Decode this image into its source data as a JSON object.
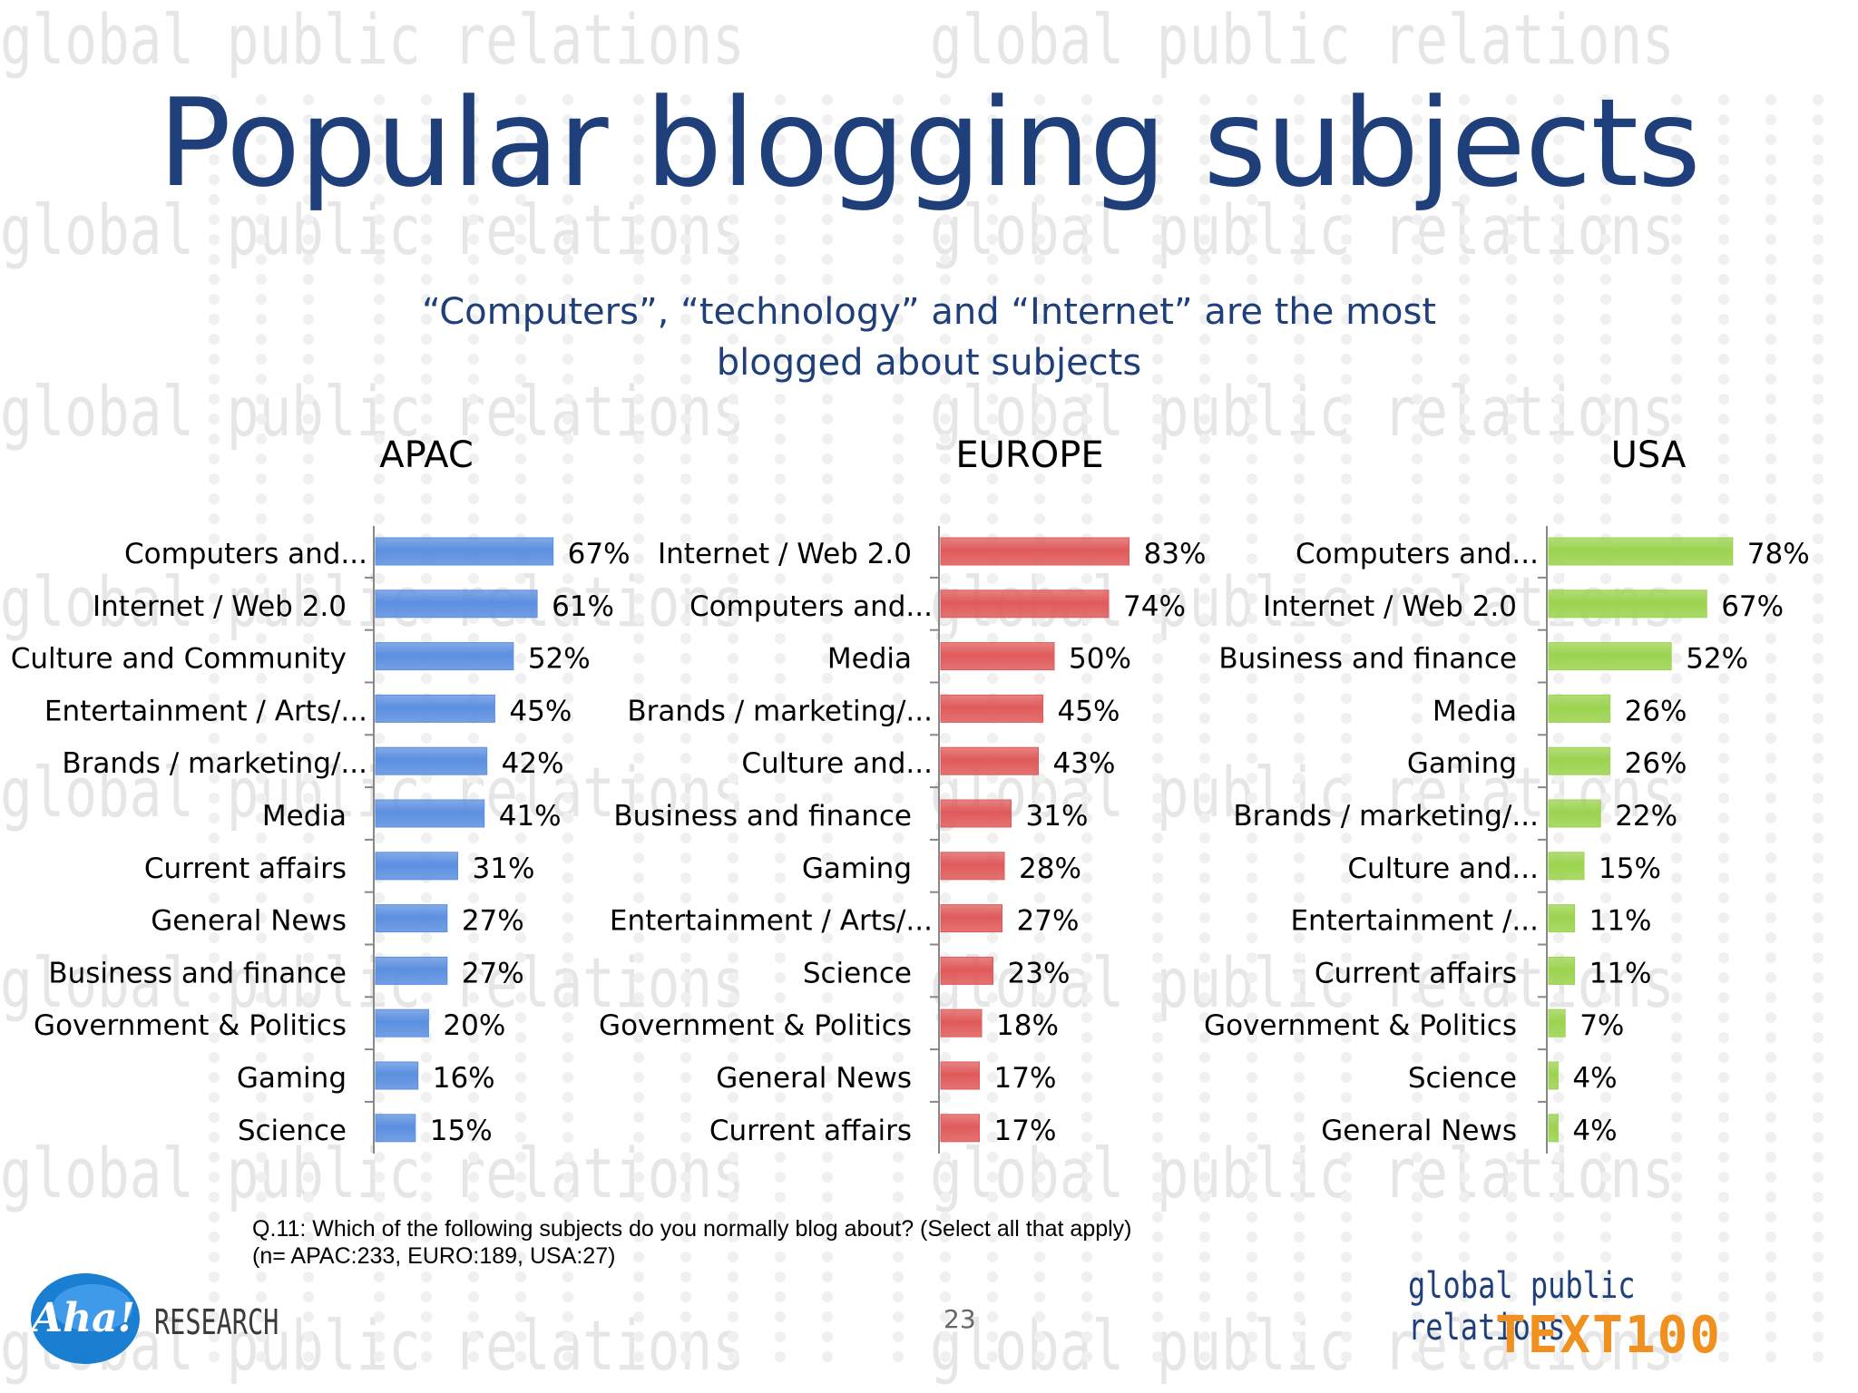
{
  "title": "Popular blogging subjects",
  "subtitle_line1": "“Computers”, “technology” and “Internet” are the most",
  "subtitle_line2": "blogged about subjects",
  "watermark_text": "global public relations",
  "footnote_line1": "Q.11: Which of the following subjects do you normally blog about? (Select all that apply)",
  "footnote_line2": "(n= APAC:233, EURO:189, USA:27)",
  "page_number": "23",
  "logo_left": {
    "script": "Aha!",
    "text": "RESEARCH"
  },
  "logo_right": {
    "text": "global public relations",
    "mark": "TEXT100"
  },
  "colors": {
    "title": "#1f3f7a",
    "apac": "#5b8fe0",
    "europe": "#e05a5a",
    "usa": "#9bd34e",
    "brand_orange": "#f0901e"
  },
  "chart_data": [
    {
      "type": "bar",
      "orientation": "horizontal",
      "title": "APAC",
      "categories": [
        "Computers and...",
        "Internet / Web 2.0",
        "Culture and Community",
        "Entertainment / Arts/...",
        "Brands / marketing/...",
        "Media",
        "Current affairs",
        "General News",
        "Business and finance",
        "Government & Politics",
        "Gaming",
        "Science"
      ],
      "values": [
        67,
        61,
        52,
        45,
        42,
        41,
        31,
        27,
        27,
        20,
        16,
        15
      ],
      "value_suffix": "%",
      "color": "#5b8fe0"
    },
    {
      "type": "bar",
      "orientation": "horizontal",
      "title": "EUROPE",
      "categories": [
        "Internet / Web 2.0",
        "Computers and...",
        "Media",
        "Brands / marketing/...",
        "Culture and...",
        "Business and finance",
        "Gaming",
        "Entertainment / Arts/...",
        "Science",
        "Government & Politics",
        "General News",
        "Current affairs"
      ],
      "values": [
        83,
        74,
        50,
        45,
        43,
        31,
        28,
        27,
        23,
        18,
        17,
        17
      ],
      "value_suffix": "%",
      "color": "#e05a5a"
    },
    {
      "type": "bar",
      "orientation": "horizontal",
      "title": "USA",
      "categories": [
        "Computers and...",
        "Internet / Web 2.0",
        "Business and finance",
        "Media",
        "Gaming",
        "Brands / marketing/...",
        "Culture and...",
        "Entertainment /...",
        "Current affairs",
        "Government & Politics",
        "Science",
        "General News"
      ],
      "values": [
        78,
        67,
        52,
        26,
        26,
        22,
        15,
        11,
        11,
        7,
        4,
        4
      ],
      "value_suffix": "%",
      "color": "#9bd34e"
    }
  ]
}
